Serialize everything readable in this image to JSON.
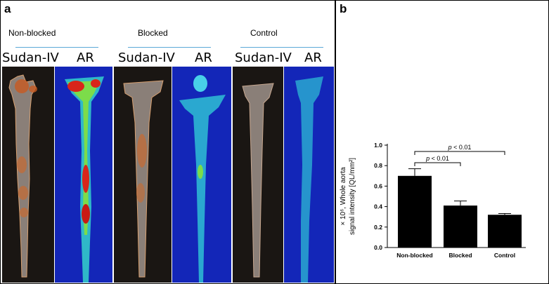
{
  "panel_a": {
    "letter": "a",
    "groups": [
      {
        "label": "Non-blocked",
        "stain_label": "Sudan-IV",
        "ar_label": "AR"
      },
      {
        "label": "Blocked",
        "stain_label": "Sudan-IV",
        "ar_label": "AR"
      },
      {
        "label": "Control",
        "stain_label": "Sudan-IV",
        "ar_label": "AR"
      }
    ]
  },
  "panel_b": {
    "letter": "b"
  },
  "colors": {
    "bar": "#000000",
    "heat_bg": "#1326b8",
    "stain_bg": "#1a1613",
    "line": "#5aa9d8"
  },
  "chart_data": {
    "type": "bar",
    "categories": [
      "Non-blocked",
      "Blocked",
      "Control"
    ],
    "values": [
      0.7,
      0.41,
      0.32
    ],
    "errors": [
      0.07,
      0.045,
      0.012
    ],
    "ylabel_line1": "× 10⁶, Whole aorta",
    "ylabel_line2": "signal intensity [QL/mm²]",
    "ylim": [
      0,
      1.0
    ],
    "yticks": [
      "0.0",
      "0.2",
      "0.4",
      "0.6",
      "0.8",
      "1.0"
    ],
    "annotations": [
      {
        "from": 0,
        "to": 1,
        "text_italic": "p",
        "text_rest": " < 0.01"
      },
      {
        "from": 0,
        "to": 2,
        "text_italic": "p",
        "text_rest": " < 0.01"
      }
    ]
  }
}
